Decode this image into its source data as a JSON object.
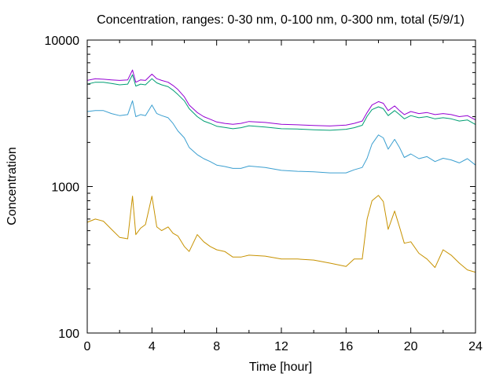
{
  "chart_data": {
    "type": "line",
    "title": "Concentration, ranges: 0-30 nm, 0-100 nm, 0-300 nm, total (5/9/1)",
    "xlabel": "Time [hour]",
    "ylabel": "Concentration",
    "xlim": [
      0,
      24
    ],
    "ylim": [
      100,
      10000
    ],
    "yscale": "log",
    "grid": false,
    "legend": "none",
    "xticks": [
      "0",
      "4",
      "8",
      "12",
      "16",
      "20",
      "24"
    ],
    "yticks": [
      "100",
      "1000",
      "10000"
    ],
    "series": [
      {
        "color": "#c79200",
        "x": [
          0,
          0.5,
          1,
          1.5,
          2,
          2.5,
          2.8,
          3,
          3.3,
          3.6,
          4,
          4.3,
          4.6,
          5,
          5.3,
          5.6,
          6,
          6.3,
          6.8,
          7.2,
          7.6,
          8,
          8.5,
          9,
          9.5,
          10,
          11,
          12,
          13,
          14,
          15,
          16,
          16.5,
          17,
          17.3,
          17.6,
          18,
          18.3,
          18.6,
          19,
          19.3,
          19.6,
          20,
          20.5,
          21,
          21.5,
          22,
          22.5,
          23,
          23.5,
          24
        ],
        "y": [
          570,
          600,
          580,
          510,
          450,
          440,
          860,
          470,
          520,
          550,
          860,
          530,
          500,
          530,
          480,
          460,
          390,
          360,
          470,
          420,
          390,
          370,
          360,
          330,
          330,
          340,
          335,
          320,
          320,
          315,
          300,
          285,
          320,
          320,
          600,
          800,
          870,
          790,
          510,
          680,
          530,
          410,
          420,
          350,
          320,
          280,
          370,
          340,
          300,
          270,
          260
        ]
      },
      {
        "color": "#3b9fd0",
        "x": [
          0,
          0.5,
          1,
          1.5,
          2,
          2.5,
          2.8,
          3,
          3.3,
          3.6,
          4,
          4.3,
          4.6,
          5,
          5.3,
          5.6,
          6,
          6.3,
          6.8,
          7.2,
          7.6,
          8,
          8.5,
          9,
          9.5,
          10,
          11,
          12,
          13,
          14,
          15,
          16,
          16.5,
          17,
          17.3,
          17.6,
          18,
          18.3,
          18.6,
          19,
          19.3,
          19.6,
          20,
          20.5,
          21,
          21.5,
          22,
          22.5,
          23,
          23.5,
          24
        ],
        "y": [
          3250,
          3300,
          3300,
          3150,
          3050,
          3100,
          3850,
          3000,
          3100,
          3050,
          3600,
          3150,
          3050,
          2950,
          2700,
          2400,
          2150,
          1850,
          1650,
          1550,
          1480,
          1400,
          1370,
          1330,
          1330,
          1380,
          1350,
          1290,
          1270,
          1260,
          1240,
          1240,
          1300,
          1350,
          1560,
          1950,
          2250,
          2150,
          1800,
          2100,
          1850,
          1580,
          1670,
          1550,
          1600,
          1480,
          1560,
          1520,
          1450,
          1550,
          1400
        ]
      },
      {
        "color": "#009e73",
        "x": [
          0,
          0.5,
          1,
          1.5,
          2,
          2.5,
          2.8,
          3,
          3.3,
          3.6,
          4,
          4.3,
          4.6,
          5,
          5.3,
          5.6,
          6,
          6.3,
          6.8,
          7.2,
          7.6,
          8,
          8.5,
          9,
          9.5,
          10,
          11,
          12,
          13,
          14,
          15,
          16,
          16.5,
          17,
          17.3,
          17.6,
          18,
          18.3,
          18.6,
          19,
          19.3,
          19.6,
          20,
          20.5,
          21,
          21.5,
          22,
          22.5,
          23,
          23.5,
          24
        ],
        "y": [
          5000,
          5150,
          5150,
          5050,
          4950,
          5000,
          5800,
          4850,
          5000,
          4950,
          5450,
          5100,
          4950,
          4800,
          4550,
          4250,
          3850,
          3400,
          3000,
          2800,
          2700,
          2580,
          2530,
          2480,
          2520,
          2600,
          2550,
          2480,
          2470,
          2440,
          2420,
          2460,
          2520,
          2620,
          3020,
          3350,
          3500,
          3400,
          3050,
          3300,
          3100,
          2900,
          3050,
          2950,
          3000,
          2900,
          2950,
          2900,
          2800,
          2850,
          2650
        ]
      },
      {
        "color": "#9400d3",
        "x": [
          0,
          0.5,
          1,
          1.5,
          2,
          2.5,
          2.8,
          3,
          3.3,
          3.6,
          4,
          4.3,
          4.6,
          5,
          5.3,
          5.6,
          6,
          6.3,
          6.8,
          7.2,
          7.6,
          8,
          8.5,
          9,
          9.5,
          10,
          11,
          12,
          13,
          14,
          15,
          16,
          16.5,
          17,
          17.3,
          17.6,
          18,
          18.3,
          18.6,
          19,
          19.3,
          19.6,
          20,
          20.5,
          21,
          21.5,
          22,
          22.5,
          23,
          23.5,
          24
        ],
        "y": [
          5300,
          5450,
          5400,
          5350,
          5300,
          5350,
          6250,
          5150,
          5350,
          5300,
          5850,
          5450,
          5300,
          5150,
          4900,
          4600,
          4100,
          3600,
          3200,
          3000,
          2880,
          2760,
          2700,
          2660,
          2700,
          2780,
          2740,
          2660,
          2640,
          2610,
          2590,
          2630,
          2700,
          2800,
          3200,
          3600,
          3800,
          3700,
          3300,
          3550,
          3300,
          3100,
          3250,
          3150,
          3200,
          3100,
          3150,
          3100,
          3000,
          3050,
          2850
        ]
      }
    ]
  }
}
